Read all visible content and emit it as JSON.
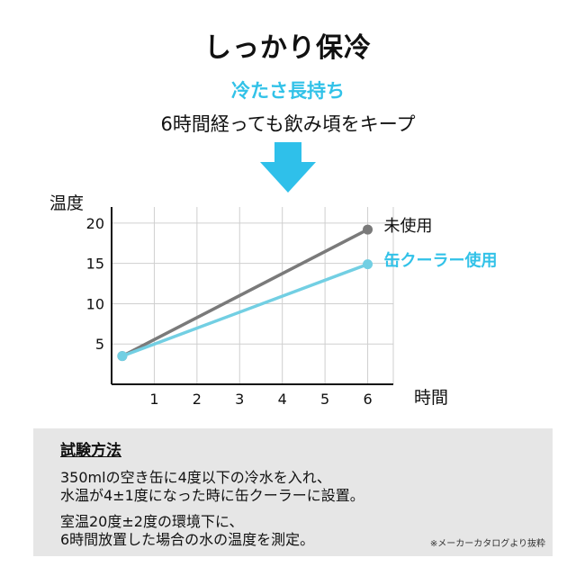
{
  "header": {
    "title": "しっかり保冷",
    "subtitle": "冷たさ長持ち",
    "lead": "6時間経っても飲み頃をキープ"
  },
  "colors": {
    "accent": "#32c2e8",
    "series_unused": "#7a7a7a",
    "series_cooler": "#72cfe3"
  },
  "chart_data": {
    "type": "line",
    "ylabel": "温度",
    "xlabel": "時間",
    "xlim": [
      0,
      6.6
    ],
    "ylim": [
      0,
      22
    ],
    "x_ticks": [
      1,
      2,
      3,
      4,
      5,
      6
    ],
    "y_ticks": [
      5,
      10,
      15,
      20
    ],
    "grid": true,
    "series": [
      {
        "name": "未使用",
        "color": "#7a7a7a",
        "x": [
          0.25,
          6
        ],
        "y": [
          3.5,
          19.2
        ]
      },
      {
        "name": "缶クーラー使用",
        "color": "#72cfe3",
        "x": [
          0.25,
          6
        ],
        "y": [
          3.5,
          14.9
        ]
      }
    ]
  },
  "method": {
    "title": "試験方法",
    "lines": [
      "350mlの空き缶に4度以下の冷水を入れ、",
      "水温が4±1度になった時に缶クーラーに設置。",
      "室温20度±2度の環境下に、",
      "6時間放置した場合の水の温度を測定。"
    ],
    "note": "※メーカーカタログより抜粋"
  }
}
